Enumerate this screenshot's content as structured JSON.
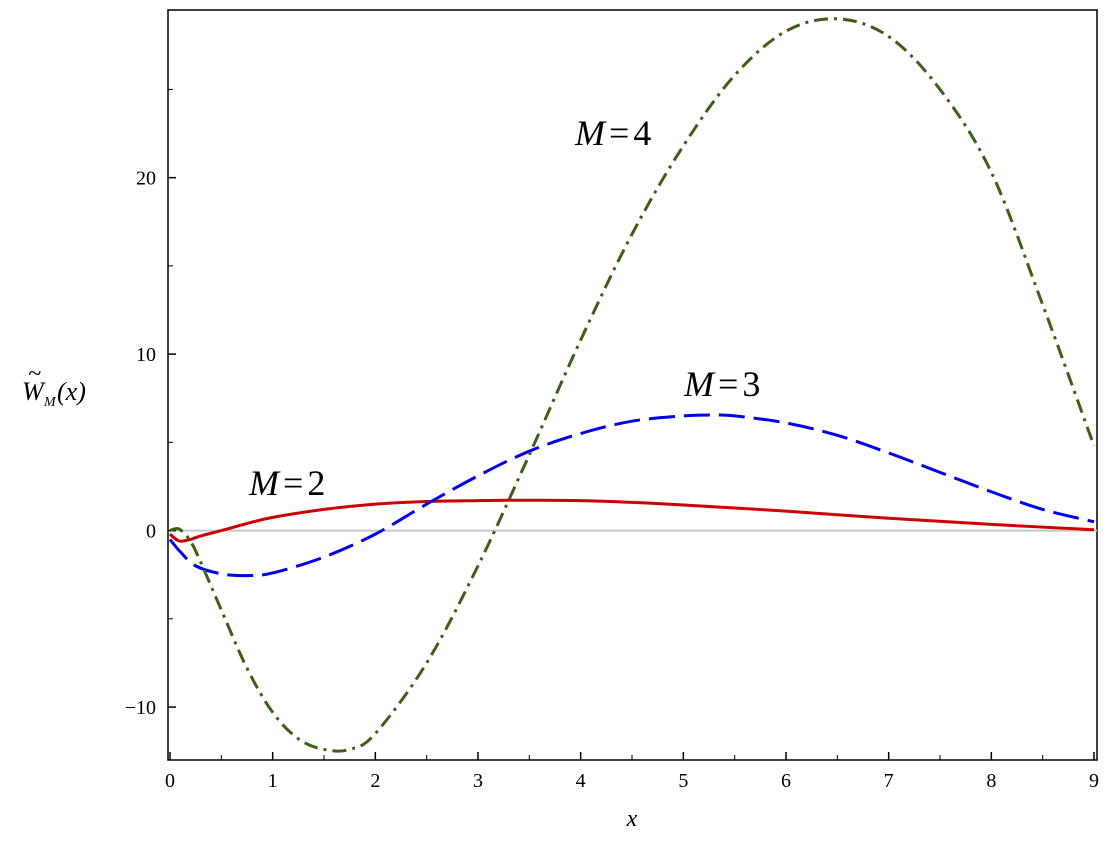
{
  "chart_data": {
    "type": "line",
    "xlabel": "x",
    "ylabel": {
      "tilde": "~",
      "letter": "W",
      "subscript": "M",
      "argument": "(x)"
    },
    "xlim": [
      0,
      9
    ],
    "ylim": [
      -13,
      29.5
    ],
    "x_ticks": [
      0,
      1,
      2,
      3,
      4,
      5,
      6,
      7,
      8,
      9
    ],
    "y_ticks": [
      -10,
      0,
      10,
      20
    ],
    "y_tick_labels": [
      "−10",
      "0",
      "10",
      "20"
    ],
    "zero_line": true,
    "grid": false,
    "series": [
      {
        "name": "M = 2",
        "label": {
          "M": "M",
          "eq": "=",
          "n": "2"
        },
        "color": "#cc0000",
        "style": "solid",
        "x": [
          0,
          0.05,
          0.1,
          0.2,
          0.3,
          0.5,
          0.75,
          1.0,
          1.5,
          2.0,
          2.5,
          3.0,
          3.3,
          3.5,
          4.0,
          4.5,
          5.0,
          6.0,
          7.0,
          8.0,
          9.0
        ],
        "y": [
          -0.2,
          -0.45,
          -0.6,
          -0.5,
          -0.3,
          0.0,
          0.4,
          0.75,
          1.2,
          1.5,
          1.65,
          1.7,
          1.72,
          1.72,
          1.7,
          1.6,
          1.45,
          1.1,
          0.7,
          0.35,
          0.05
        ]
      },
      {
        "name": "M = 3",
        "label": {
          "M": "M",
          "eq": "=",
          "n": "3"
        },
        "color": "#0000ee",
        "style": "dashed",
        "x": [
          0,
          0.1,
          0.25,
          0.5,
          0.75,
          1.0,
          1.5,
          2.0,
          2.5,
          3.0,
          3.5,
          4.0,
          4.5,
          5.0,
          5.3,
          5.5,
          6.0,
          6.5,
          7.0,
          7.5,
          8.0,
          8.5,
          9.0
        ],
        "y": [
          -0.5,
          -1.2,
          -2.0,
          -2.45,
          -2.55,
          -2.4,
          -1.5,
          -0.2,
          1.5,
          3.1,
          4.5,
          5.5,
          6.2,
          6.5,
          6.55,
          6.5,
          6.1,
          5.4,
          4.4,
          3.3,
          2.2,
          1.2,
          0.5
        ]
      },
      {
        "name": "M = 4",
        "label": {
          "M": "M",
          "eq": "=",
          "n": "4"
        },
        "color": "#3d5f17",
        "style": "dashdot",
        "x": [
          0,
          0.05,
          0.1,
          0.2,
          0.3,
          0.5,
          0.75,
          1.0,
          1.25,
          1.5,
          1.75,
          2.0,
          2.5,
          3.0,
          3.5,
          4.0,
          4.5,
          5.0,
          5.5,
          6.0,
          6.5,
          7.0,
          7.5,
          8.0,
          8.5,
          9.0
        ],
        "y": [
          0,
          0.1,
          0.05,
          -0.6,
          -1.8,
          -4.5,
          -7.8,
          -10.3,
          -11.8,
          -12.4,
          -12.4,
          -11.5,
          -7.5,
          -2.0,
          4.3,
          10.8,
          16.8,
          21.8,
          25.8,
          28.3,
          29.0,
          28.0,
          25.0,
          20.3,
          12.8,
          4.8
        ]
      }
    ]
  }
}
